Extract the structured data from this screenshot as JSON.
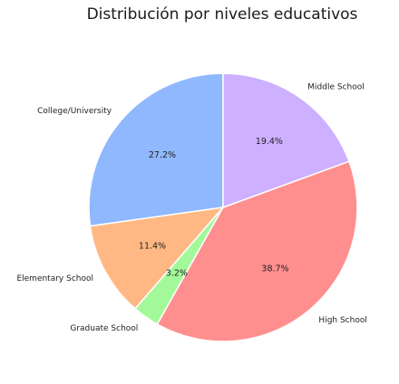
{
  "chart_data": {
    "type": "pie",
    "title": "Distribución por niveles educativos",
    "start_angle_deg": 90,
    "direction": "counterclockwise",
    "slices": [
      {
        "label": "College/University",
        "percent": 27.2,
        "percent_label": "27.2%",
        "color": "#8fb8ff"
      },
      {
        "label": "Elementary School",
        "percent": 11.4,
        "percent_label": "11.4%",
        "color": "#ffb884"
      },
      {
        "label": "Graduate School",
        "percent": 3.2,
        "percent_label": "3.2%",
        "color": "#a3f99a"
      },
      {
        "label": "High School",
        "percent": 38.7,
        "percent_label": "38.7%",
        "color": "#ff8f8f"
      },
      {
        "label": "Middle School",
        "percent": 19.4,
        "percent_label": "19.4%",
        "color": "#cdb0ff"
      }
    ]
  }
}
